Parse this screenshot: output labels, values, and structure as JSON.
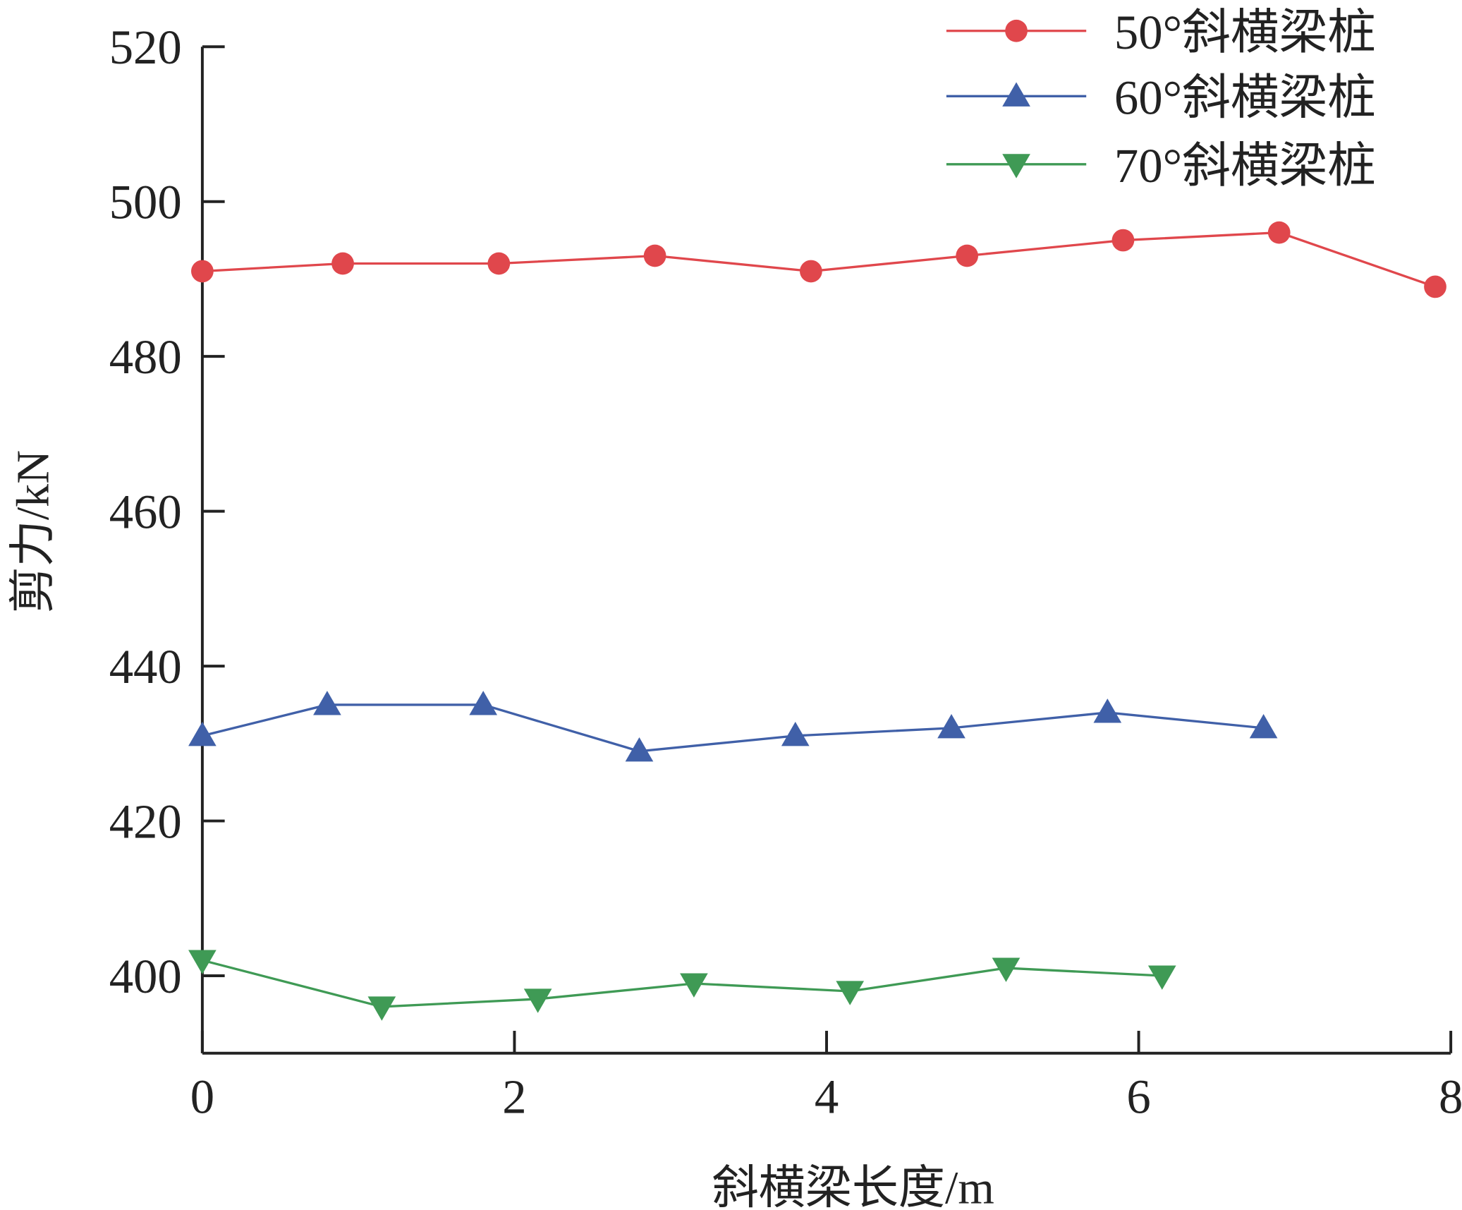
{
  "chart_data": {
    "type": "line",
    "title": "",
    "xlabel": "斜横梁长度/m",
    "ylabel": "剪力/kN",
    "xlim": [
      0,
      8
    ],
    "ylim": [
      390,
      520
    ],
    "xticks": [
      0,
      2,
      4,
      6,
      8
    ],
    "yticks": [
      400,
      420,
      440,
      460,
      480,
      500,
      520
    ],
    "grid": false,
    "legend_position": "top-right",
    "series": [
      {
        "name": "50°斜横梁桩",
        "color": "#e0474c",
        "marker": "circle",
        "x": [
          0,
          0.9,
          1.9,
          2.9,
          3.9,
          4.9,
          5.9,
          6.9,
          7.9
        ],
        "y": [
          491,
          492,
          492,
          493,
          491,
          493,
          495,
          496,
          489
        ]
      },
      {
        "name": "60°斜横梁桩",
        "color": "#4060a8",
        "marker": "triangle-up",
        "x": [
          0,
          0.8,
          1.8,
          2.8,
          3.8,
          4.8,
          5.8,
          6.8
        ],
        "y": [
          431,
          435,
          435,
          429,
          431,
          432,
          434,
          432
        ]
      },
      {
        "name": "70°斜横梁桩",
        "color": "#3f9a55",
        "marker": "triangle-down",
        "x": [
          0,
          1.15,
          2.15,
          3.15,
          4.15,
          5.15,
          6.15
        ],
        "y": [
          402,
          396,
          397,
          399,
          398,
          401,
          400
        ]
      }
    ]
  }
}
